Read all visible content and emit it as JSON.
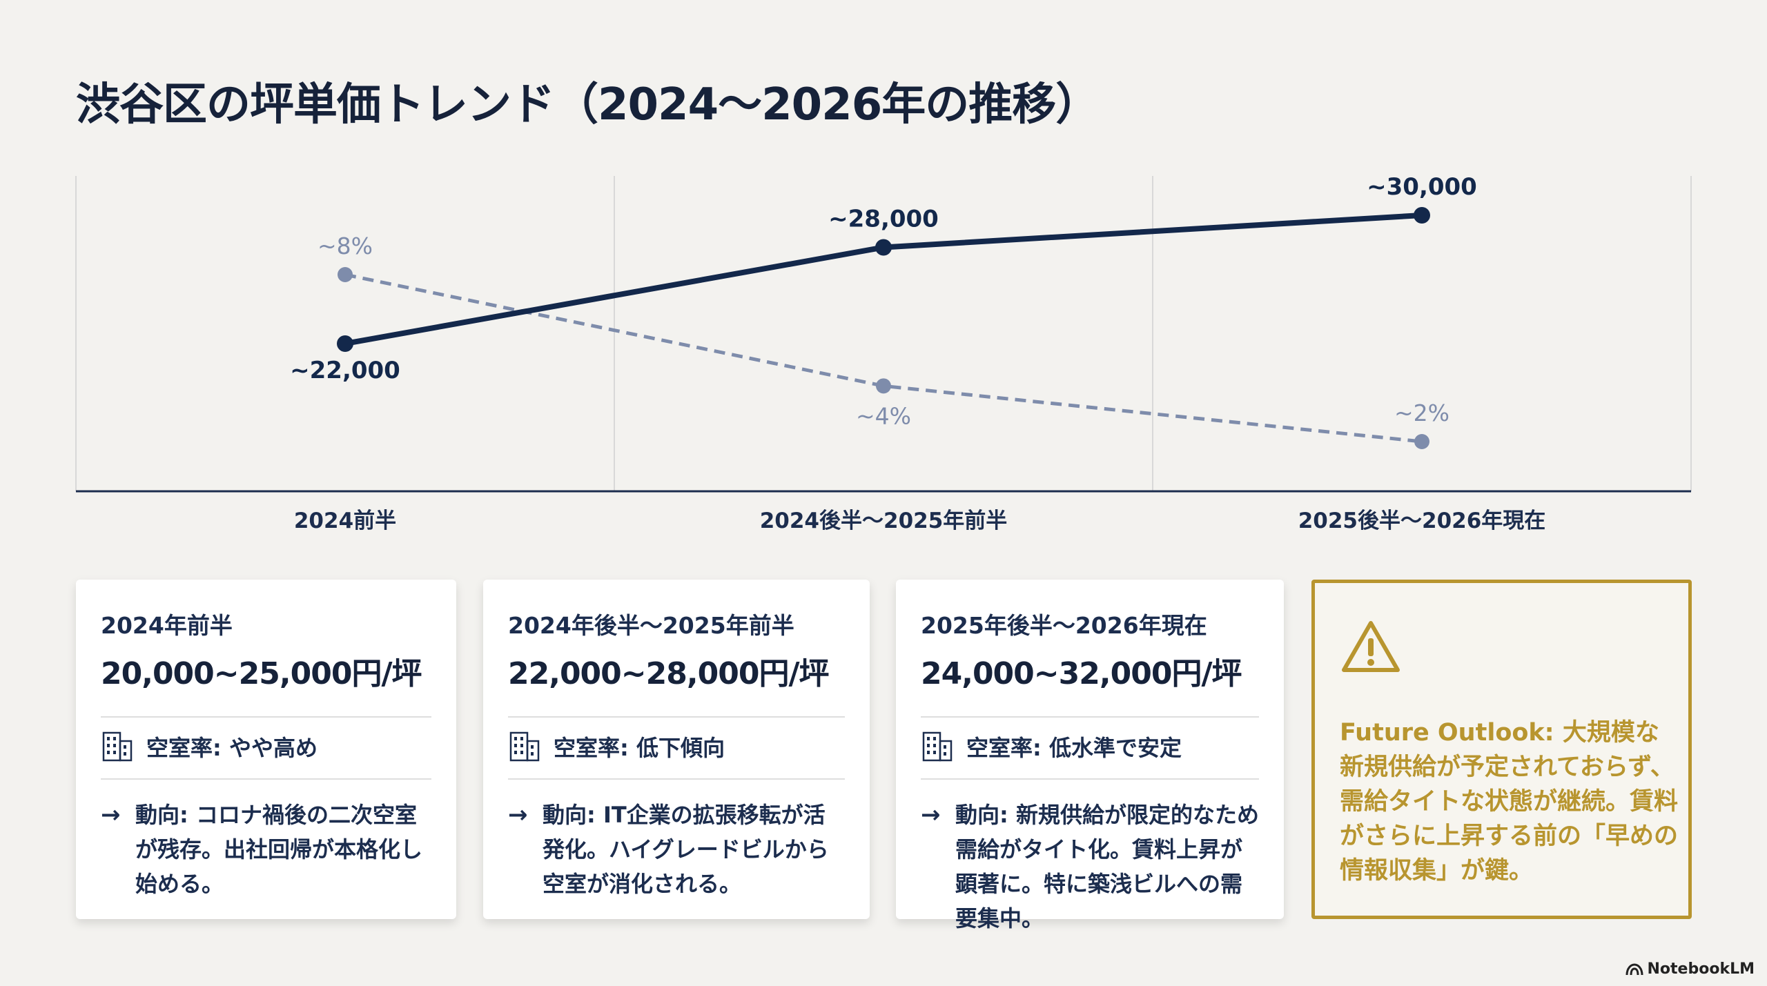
{
  "title": "渋谷区の坪単価トレンド（2024〜2026年の推移）",
  "colors": {
    "price_line": "#13284b",
    "vacancy_line": "#7e8cab",
    "outlook_accent": "#b8952f"
  },
  "chart_data": {
    "type": "line",
    "categories": [
      "2024前半",
      "2024後半〜2025年前半",
      "2025後半〜2026年現在"
    ],
    "series": [
      {
        "values": [
          22000,
          28000,
          30000
        ],
        "labels": [
          "~22,000",
          "~28,000",
          "~30,000"
        ],
        "style": "solid"
      },
      {
        "values": [
          8,
          4,
          2
        ],
        "labels": [
          "~8%",
          "~4%",
          "~2%"
        ],
        "style": "dashed"
      }
    ],
    "grid": "vertical",
    "legend": "none"
  },
  "cards": [
    {
      "period": "2024年前半",
      "price": "20,000~25,000円/坪",
      "vacancy": "空室率: やや高め",
      "trend": "動向: コロナ禍後の二次空室が残存。出社回帰が本格化し始める。"
    },
    {
      "period": "2024年後半〜2025年前半",
      "price": "22,000~28,000円/坪",
      "vacancy": "空室率: 低下傾向",
      "trend": "動向: IT企業の拡張移転が活発化。ハイグレードビルから空室が消化される。"
    },
    {
      "period": "2025年後半〜2026年現在",
      "price": "24,000~32,000円/坪",
      "vacancy": "空室率: 低水準で安定",
      "trend": "動向: 新規供給が限定的なため需給がタイト化。賃料上昇が顕著に。特に築浅ビルへの需要集中。"
    }
  ],
  "outlook": {
    "icon": "warning-icon",
    "text": "Future Outlook: 大規模な新規供給が予定されておらず、需給タイトな状態が継続。賃料がさらに上昇する前の「早めの情報収集」が鍵。"
  },
  "branding": {
    "label": "NotebookLM"
  }
}
